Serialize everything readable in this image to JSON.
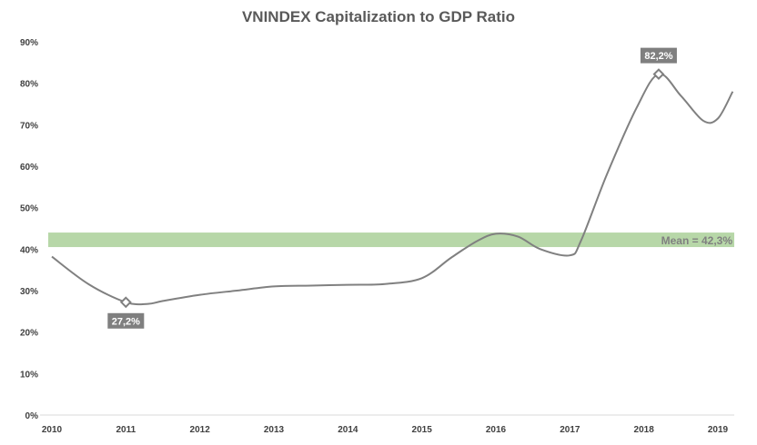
{
  "chart_data": {
    "type": "line",
    "title": "VNINDEX Capitalization to GDP Ratio",
    "xlabel": "",
    "ylabel": "",
    "x_ticks": [
      "2010",
      "2011",
      "2012",
      "2013",
      "2014",
      "2015",
      "2016",
      "2017",
      "2018",
      "2019"
    ],
    "y_ticks": [
      "0%",
      "10%",
      "20%",
      "30%",
      "40%",
      "50%",
      "60%",
      "70%",
      "80%",
      "90%"
    ],
    "xlim": [
      2010,
      2019
    ],
    "ylim": [
      0,
      90
    ],
    "grid": false,
    "legend": "none",
    "series": [
      {
        "color": "#808080",
        "points": [
          [
            2010.0,
            38.2
          ],
          [
            2010.5,
            31.5
          ],
          [
            2011.0,
            27.2
          ],
          [
            2011.3,
            26.8
          ],
          [
            2011.5,
            27.5
          ],
          [
            2012.0,
            29.0
          ],
          [
            2012.5,
            30.0
          ],
          [
            2013.0,
            31.0
          ],
          [
            2013.5,
            31.2
          ],
          [
            2014.0,
            31.4
          ],
          [
            2014.5,
            31.6
          ],
          [
            2015.0,
            33.0
          ],
          [
            2015.4,
            38.0
          ],
          [
            2015.75,
            42.0
          ],
          [
            2016.0,
            43.7
          ],
          [
            2016.3,
            43.0
          ],
          [
            2016.6,
            40.0
          ],
          [
            2017.0,
            38.5
          ],
          [
            2017.15,
            42.0
          ],
          [
            2017.5,
            58.0
          ],
          [
            2017.9,
            74.0
          ],
          [
            2018.2,
            82.2
          ],
          [
            2018.5,
            77.0
          ],
          [
            2018.8,
            71.0
          ],
          [
            2019.0,
            71.5
          ],
          [
            2019.2,
            78.0
          ]
        ]
      }
    ],
    "annotations": [
      {
        "label": "27,2%",
        "x": 2011.0,
        "y": 27.2,
        "placement": "below"
      },
      {
        "label": "82,2%",
        "x": 2018.2,
        "y": 82.2,
        "placement": "above"
      }
    ],
    "mean_band": {
      "value": 42.3,
      "y_from": 40.5,
      "y_to": 44.0,
      "label": "Mean = 42,3%",
      "color": "#b7d7a8"
    },
    "marker_style": "diamond"
  }
}
